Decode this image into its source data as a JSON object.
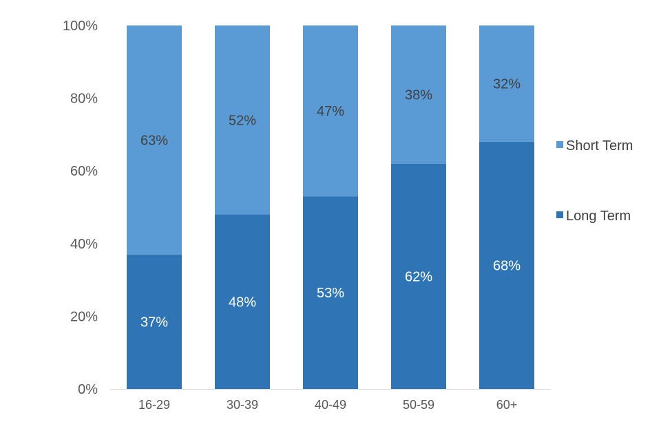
{
  "chart_data": {
    "type": "bar",
    "stacked": true,
    "categories": [
      "16-29",
      "30-39",
      "40-49",
      "50-59",
      "60+"
    ],
    "series": [
      {
        "name": "Long Term",
        "values": [
          37,
          48,
          53,
          62,
          68
        ],
        "labels": [
          "37%",
          "48%",
          "53%",
          "62%",
          "68%"
        ],
        "color": "#2f75b5"
      },
      {
        "name": "Short Term",
        "values": [
          63,
          52,
          47,
          38,
          32
        ],
        "labels": [
          "63%",
          "52%",
          "47%",
          "38%",
          "32%"
        ],
        "color": "#5b9bd5"
      }
    ],
    "ylim": [
      0,
      100
    ],
    "yticks": [
      0,
      20,
      40,
      60,
      80,
      100
    ],
    "ytick_labels": [
      "0%",
      "20%",
      "40%",
      "60%",
      "80%",
      "100%"
    ],
    "grid": false,
    "legend_position": "right",
    "legend_order": [
      "Short Term",
      "Long Term"
    ]
  }
}
